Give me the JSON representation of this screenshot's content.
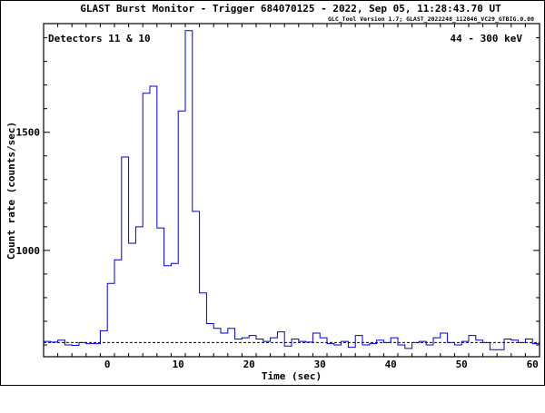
{
  "chart_data": {
    "type": "line",
    "title": "GLAST Burst Monitor  -  Trigger 684070125  -  2022, Sep 05, 11:28:43.70 UT",
    "subtitle": "GLC_Tool Version 1.7; GLAST_2022248_112846_VC29_GTBIG.0.00",
    "detectors_label": "Detectors 11 & 10",
    "energy_label": "44 - 300 keV",
    "xlabel": "Time (sec)",
    "ylabel": "Count rate (counts/sec)",
    "xlim": [
      -9,
      61
    ],
    "ylim": [
      550,
      1960
    ],
    "x_ticks": [
      0,
      10,
      20,
      30,
      40,
      50,
      60
    ],
    "x_tick_labels": [
      "0",
      "10",
      "20",
      "30",
      "40",
      "50",
      "60"
    ],
    "y_ticks": [
      1000,
      1500
    ],
    "y_tick_labels": [
      "1000",
      "1500"
    ],
    "background_level": 610,
    "grid": false,
    "series": [
      {
        "style": "step",
        "color": "#0000cc",
        "bin_edges": [
          -9,
          -8,
          -7,
          -6,
          -5,
          -4,
          -3,
          -2,
          -1,
          0,
          1,
          2,
          3,
          4,
          5,
          6,
          7,
          8,
          9,
          10,
          11,
          12,
          13,
          14,
          15,
          16,
          17,
          18,
          19,
          20,
          21,
          22,
          23,
          24,
          25,
          26,
          27,
          28,
          29,
          30,
          31,
          32,
          33,
          34,
          35,
          36,
          37,
          38,
          39,
          40,
          41,
          42,
          43,
          44,
          45,
          46,
          47,
          48,
          49,
          50,
          51,
          52,
          53,
          54,
          55,
          56,
          57,
          58,
          59,
          60,
          61
        ],
        "values": [
          615,
          612,
          620,
          600,
          598,
          610,
          605,
          605,
          660,
          860,
          960,
          1395,
          1030,
          1100,
          1665,
          1695,
          1095,
          935,
          945,
          1590,
          1930,
          1165,
          820,
          690,
          670,
          650,
          670,
          625,
          630,
          640,
          625,
          615,
          630,
          655,
          595,
          625,
          615,
          612,
          650,
          630,
          605,
          600,
          615,
          590,
          640,
          600,
          605,
          620,
          610,
          630,
          600,
          585,
          610,
          615,
          600,
          630,
          650,
          610,
          600,
          615,
          640,
          620,
          610,
          580,
          580,
          625,
          620,
          610,
          625,
          605
        ]
      }
    ]
  }
}
